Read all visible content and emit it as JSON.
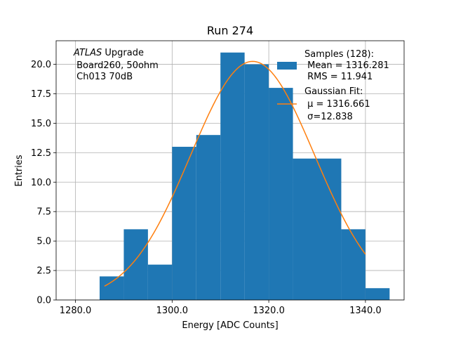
{
  "chart_data": {
    "type": "bar",
    "title": "Run 274",
    "xlabel": "Energy [ADC Counts]",
    "ylabel": "Entries",
    "xlim": [
      1276,
      1348
    ],
    "ylim": [
      0,
      22
    ],
    "xticks": [
      1280,
      1300,
      1320,
      1340
    ],
    "xtick_labels": [
      "1280.0",
      "1300.0",
      "1320.0",
      "1340.0"
    ],
    "yticks": [
      0,
      2.5,
      5,
      7.5,
      10,
      12.5,
      15,
      17.5,
      20
    ],
    "ytick_labels": [
      "0.0",
      "2.5",
      "5.0",
      "7.5",
      "10.0",
      "12.5",
      "15.0",
      "17.5",
      "20.0"
    ],
    "grid": true,
    "bins": [
      {
        "x0": 1285,
        "x1": 1290,
        "value": 2
      },
      {
        "x0": 1290,
        "x1": 1295,
        "value": 6
      },
      {
        "x0": 1295,
        "x1": 1300,
        "value": 3
      },
      {
        "x0": 1300,
        "x1": 1305,
        "value": 13
      },
      {
        "x0": 1305,
        "x1": 1310,
        "value": 14
      },
      {
        "x0": 1310,
        "x1": 1315,
        "value": 21
      },
      {
        "x0": 1315,
        "x1": 1320,
        "value": 20
      },
      {
        "x0": 1320,
        "x1": 1325,
        "value": 18
      },
      {
        "x0": 1325,
        "x1": 1330,
        "value": 12
      },
      {
        "x0": 1330,
        "x1": 1335,
        "value": 12
      },
      {
        "x0": 1335,
        "x1": 1340,
        "value": 6
      },
      {
        "x0": 1340,
        "x1": 1345,
        "value": 1
      }
    ],
    "fit": {
      "mu": 1316.661,
      "sigma": 12.838,
      "amplitude": 20.25,
      "x_range": [
        1286,
        1340
      ]
    },
    "colors": {
      "bars": "#1f77b4",
      "fit_line": "#ff7f0e"
    },
    "annotation": {
      "line1_italic": "ATLAS",
      "line1_rest": " Upgrade",
      "line2": " Board260, 50ohm",
      "line3": " Ch013 70dB"
    },
    "legend": {
      "placement": "upper right",
      "samples_title": "Samples (128):",
      "samples_mean": " Mean = 1316.281",
      "samples_rms": " RMS = 11.941",
      "fit_title": "Gaussian Fit:",
      "fit_mu": " μ = 1316.661",
      "fit_sigma": " σ=12.838"
    }
  }
}
